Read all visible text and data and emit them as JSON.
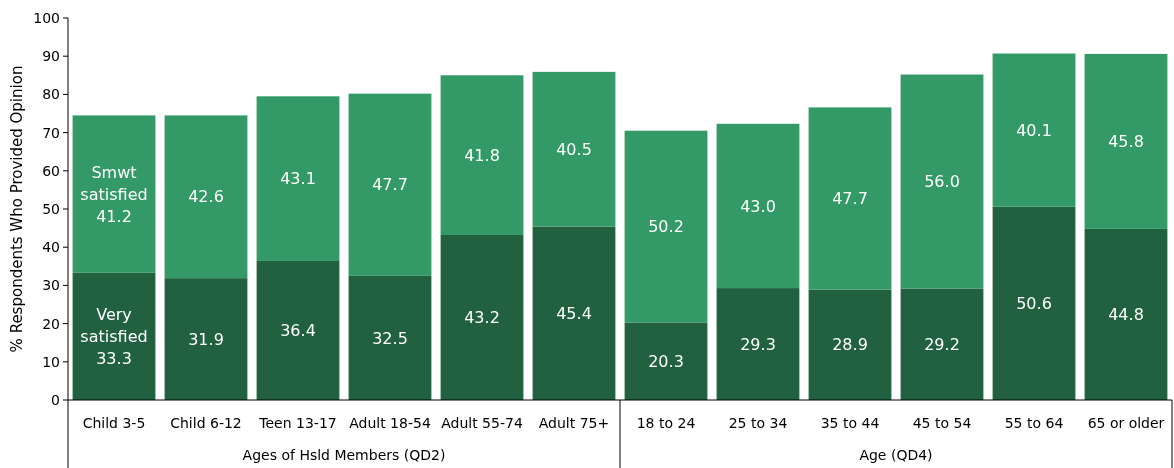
{
  "chart_data": {
    "type": "bar",
    "stacked": true,
    "ylabel": "% Respondents Who Provided Opinion",
    "categories": [
      "Child 3-5",
      "Child 6-12",
      "Teen 13-17",
      "Adult 18-54",
      "Adult 55-74",
      "Adult 75+",
      "18 to 24",
      "25 to 34",
      "35 to 44",
      "45 to 54",
      "55 to 64",
      "65 or older"
    ],
    "series": [
      {
        "name": "Very satisfied",
        "color": "#226140",
        "values": [
          33.3,
          31.9,
          36.4,
          32.5,
          43.2,
          45.4,
          20.3,
          29.3,
          28.9,
          29.2,
          50.6,
          44.8
        ],
        "value_labels": [
          "33.3",
          "31.9",
          "36.4",
          "32.5",
          "43.2",
          "45.4",
          "20.3",
          "29.3",
          "28.9",
          "29.2",
          "50.6",
          "44.8"
        ]
      },
      {
        "name": "Smwt satisfied",
        "color": "#339966",
        "values": [
          41.2,
          42.6,
          43.1,
          47.7,
          41.8,
          40.5,
          50.2,
          43.0,
          47.7,
          56.0,
          40.1,
          45.8
        ],
        "value_labels": [
          "41.2",
          "42.6",
          "43.1",
          "47.7",
          "41.8",
          "40.5",
          "50.2",
          "43.0",
          "47.7",
          "56.0",
          "40.1",
          "45.8"
        ]
      }
    ],
    "ylim": [
      0,
      100
    ],
    "yticks": [
      0,
      10,
      20,
      30,
      40,
      50,
      60,
      70,
      80,
      90,
      100
    ],
    "grid": false,
    "annotations": [
      "Ages of Hsld Members (QD2)",
      "Age (QD4)"
    ]
  }
}
